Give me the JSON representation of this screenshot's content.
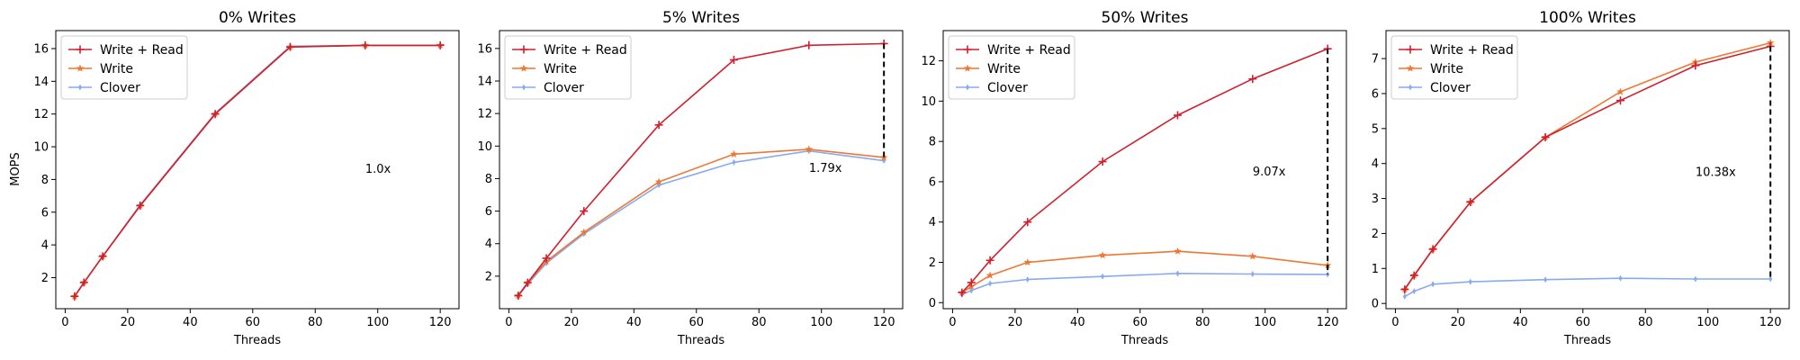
{
  "colors": {
    "write_read": "#d0202e",
    "write": "#ee7733",
    "clover": "#88aaee"
  },
  "chart_data": [
    {
      "type": "line",
      "title": "0% Writes",
      "xlabel": "Threads",
      "ylabel": "MOPS",
      "xlim": [
        -3,
        126
      ],
      "ylim": [
        0.1,
        17.1
      ],
      "xticks": [
        0,
        20,
        40,
        60,
        80,
        100,
        120
      ],
      "yticks": [
        2,
        4,
        6,
        8,
        10,
        12,
        14,
        16
      ],
      "x": [
        3,
        6,
        12,
        24,
        48,
        72,
        96,
        120
      ],
      "series": [
        {
          "name": "Write + Read",
          "values": [
            0.85,
            1.7,
            3.3,
            6.4,
            12.0,
            16.1,
            16.2,
            16.2
          ]
        },
        {
          "name": "Write",
          "values": [
            0.85,
            1.7,
            3.3,
            6.4,
            12.0,
            16.1,
            16.2,
            16.2
          ]
        },
        {
          "name": "Clover",
          "values": [
            0.85,
            1.7,
            3.3,
            6.45,
            12.05,
            16.15,
            16.2,
            16.2
          ]
        }
      ],
      "annotation": {
        "text": "1.0x",
        "x": 96,
        "y": 8.4
      },
      "gap_line": null,
      "legend_position": "upper-left"
    },
    {
      "type": "line",
      "title": "5% Writes",
      "xlabel": "Threads",
      "ylabel": "",
      "xlim": [
        -3,
        126
      ],
      "ylim": [
        0,
        17.1
      ],
      "xticks": [
        0,
        20,
        40,
        60,
        80,
        100,
        120
      ],
      "yticks": [
        2,
        4,
        6,
        8,
        10,
        12,
        14,
        16
      ],
      "x": [
        3,
        6,
        12,
        24,
        48,
        72,
        96,
        120
      ],
      "series": [
        {
          "name": "Write + Read",
          "values": [
            0.8,
            1.6,
            3.1,
            6.0,
            11.3,
            15.3,
            16.2,
            16.3
          ]
        },
        {
          "name": "Write",
          "values": [
            0.8,
            1.6,
            2.9,
            4.7,
            7.8,
            9.5,
            9.8,
            9.3
          ]
        },
        {
          "name": "Clover",
          "values": [
            0.8,
            1.5,
            2.8,
            4.6,
            7.6,
            9.0,
            9.7,
            9.1
          ]
        }
      ],
      "annotation": {
        "text": "1.79x",
        "x": 96,
        "y": 8.4
      },
      "gap_line": {
        "x": 120,
        "y_top": 16.3,
        "y_bottom": 9.1
      },
      "legend_position": "upper-left"
    },
    {
      "type": "line",
      "title": "50% Writes",
      "xlabel": "Threads",
      "ylabel": "",
      "xlim": [
        -3,
        126
      ],
      "ylim": [
        -0.3,
        13.5
      ],
      "xticks": [
        0,
        20,
        40,
        60,
        80,
        100,
        120
      ],
      "yticks": [
        0,
        2,
        4,
        6,
        8,
        10,
        12
      ],
      "x": [
        3,
        6,
        12,
        24,
        48,
        72,
        96,
        120
      ],
      "series": [
        {
          "name": "Write + Read",
          "values": [
            0.5,
            1.0,
            2.1,
            4.0,
            7.0,
            9.3,
            11.1,
            12.6
          ]
        },
        {
          "name": "Write",
          "values": [
            0.5,
            0.8,
            1.35,
            2.0,
            2.35,
            2.55,
            2.3,
            1.85
          ]
        },
        {
          "name": "Clover",
          "values": [
            0.4,
            0.6,
            0.95,
            1.15,
            1.3,
            1.45,
            1.42,
            1.4
          ]
        }
      ],
      "annotation": {
        "text": "9.07x",
        "x": 96,
        "y": 6.3
      },
      "gap_line": {
        "x": 120,
        "y_top": 12.6,
        "y_bottom": 1.4
      },
      "legend_position": "upper-left"
    },
    {
      "type": "line",
      "title": "100% Writes",
      "xlabel": "Threads",
      "ylabel": "",
      "xlim": [
        -3,
        126
      ],
      "ylim": [
        -0.15,
        7.8
      ],
      "xticks": [
        0,
        20,
        40,
        60,
        80,
        100,
        120
      ],
      "yticks": [
        0,
        1,
        2,
        3,
        4,
        5,
        6,
        7
      ],
      "x": [
        3,
        6,
        12,
        24,
        48,
        72,
        96,
        120
      ],
      "series": [
        {
          "name": "Write + Read",
          "values": [
            0.4,
            0.8,
            1.55,
            2.9,
            4.75,
            5.8,
            6.8,
            7.35
          ]
        },
        {
          "name": "Write",
          "values": [
            0.4,
            0.8,
            1.55,
            2.9,
            4.75,
            6.05,
            6.9,
            7.45
          ]
        },
        {
          "name": "Clover",
          "values": [
            0.2,
            0.35,
            0.55,
            0.62,
            0.68,
            0.72,
            0.7,
            0.7
          ]
        }
      ],
      "annotation": {
        "text": "10.38x",
        "x": 96,
        "y": 3.65
      },
      "gap_line": {
        "x": 120,
        "y_top": 7.35,
        "y_bottom": 0.7
      },
      "legend_position": "upper-left"
    }
  ]
}
